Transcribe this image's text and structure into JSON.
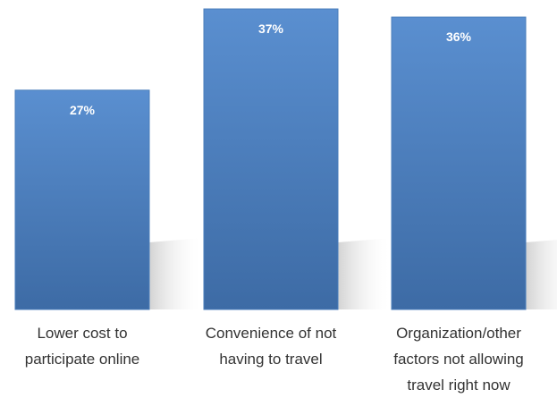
{
  "chart_data": {
    "type": "bar",
    "categories": [
      "Lower cost to participate online",
      "Convenience of not having to travel",
      "Organization/other factors not allowing travel right now"
    ],
    "values": [
      27,
      37,
      36
    ],
    "value_labels": [
      "27%",
      "37%",
      "36%"
    ],
    "color": "#4a7ebb"
  }
}
